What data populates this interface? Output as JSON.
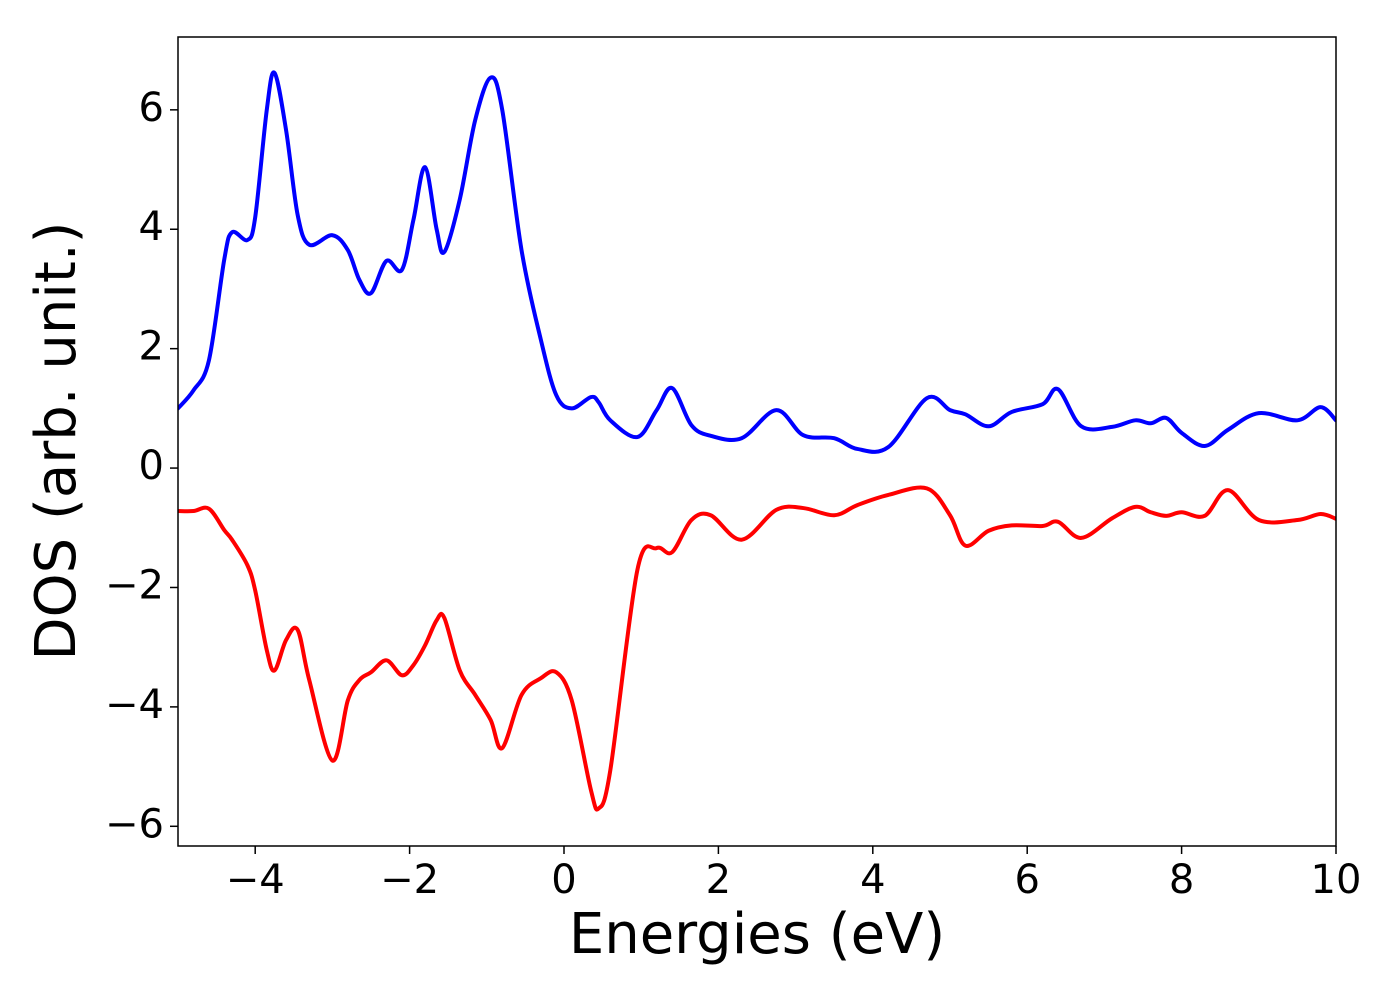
{
  "chart_data": {
    "type": "line",
    "xlabel": "Energies (eV)",
    "ylabel": "DOS (arb. unit.)",
    "x": [
      -5,
      -4.8,
      -4.6,
      -4.4,
      -4.3,
      -4.1,
      -4.0,
      -3.85,
      -3.75,
      -3.6,
      -3.45,
      -3.3,
      -3.0,
      -2.8,
      -2.65,
      -2.5,
      -2.3,
      -2.1,
      -1.95,
      -1.8,
      -1.65,
      -1.55,
      -1.35,
      -1.15,
      -0.95,
      -0.8,
      -0.55,
      -0.3,
      -0.1,
      0.1,
      0.35,
      0.45,
      0.6,
      0.95,
      1.2,
      1.4,
      1.65,
      1.9,
      2.3,
      2.75,
      3.1,
      3.5,
      3.8,
      4.2,
      4.7,
      5.0,
      5.2,
      5.5,
      5.8,
      6.2,
      6.4,
      6.7,
      7.1,
      7.4,
      7.6,
      7.8,
      8.0,
      8.3,
      8.6,
      9.0,
      9.5,
      9.8,
      10
    ],
    "series": [
      {
        "color": "#0000ff",
        "values": [
          1.0,
          1.3,
          1.8,
          3.5,
          3.95,
          3.82,
          4.2,
          6.0,
          6.62,
          5.66,
          4.24,
          3.74,
          3.9,
          3.65,
          3.15,
          2.93,
          3.47,
          3.32,
          4.16,
          5.04,
          4.0,
          3.62,
          4.5,
          5.83,
          6.54,
          6.0,
          3.65,
          2.15,
          1.22,
          1.0,
          1.19,
          1.1,
          0.8,
          0.52,
          0.97,
          1.34,
          0.72,
          0.54,
          0.5,
          0.97,
          0.55,
          0.5,
          0.32,
          0.35,
          1.17,
          0.97,
          0.9,
          0.7,
          0.94,
          1.07,
          1.32,
          0.7,
          0.69,
          0.8,
          0.75,
          0.84,
          0.59,
          0.37,
          0.64,
          0.92,
          0.8,
          1.02,
          0.8
        ]
      },
      {
        "color": "#ff0000",
        "values": [
          -0.72,
          -0.72,
          -0.68,
          -1.04,
          -1.2,
          -1.63,
          -2.05,
          -3.05,
          -3.39,
          -2.88,
          -2.71,
          -3.55,
          -4.9,
          -3.89,
          -3.55,
          -3.42,
          -3.22,
          -3.47,
          -3.3,
          -2.97,
          -2.55,
          -2.51,
          -3.39,
          -3.8,
          -4.22,
          -4.69,
          -3.8,
          -3.52,
          -3.42,
          -3.89,
          -5.4,
          -5.7,
          -5.06,
          -1.71,
          -1.34,
          -1.41,
          -0.87,
          -0.79,
          -1.2,
          -0.7,
          -0.67,
          -0.79,
          -0.62,
          -0.45,
          -0.34,
          -0.79,
          -1.3,
          -1.05,
          -0.96,
          -0.97,
          -0.9,
          -1.17,
          -0.84,
          -0.65,
          -0.74,
          -0.8,
          -0.74,
          -0.8,
          -0.37,
          -0.87,
          -0.87,
          -0.77,
          -0.85
        ]
      }
    ],
    "xlim": [
      -5,
      10
    ],
    "xticks": [
      {
        "value": -4,
        "label": "−4"
      },
      {
        "value": -2,
        "label": "−2"
      },
      0,
      2,
      4,
      6,
      8,
      10
    ],
    "ylim": [
      -6.33,
      7.22
    ],
    "yticks": [
      {
        "value": -6,
        "label": "−6"
      },
      {
        "value": -4,
        "label": "−4"
      },
      {
        "value": -2,
        "label": "−2"
      },
      0,
      2,
      4,
      6
    ]
  }
}
